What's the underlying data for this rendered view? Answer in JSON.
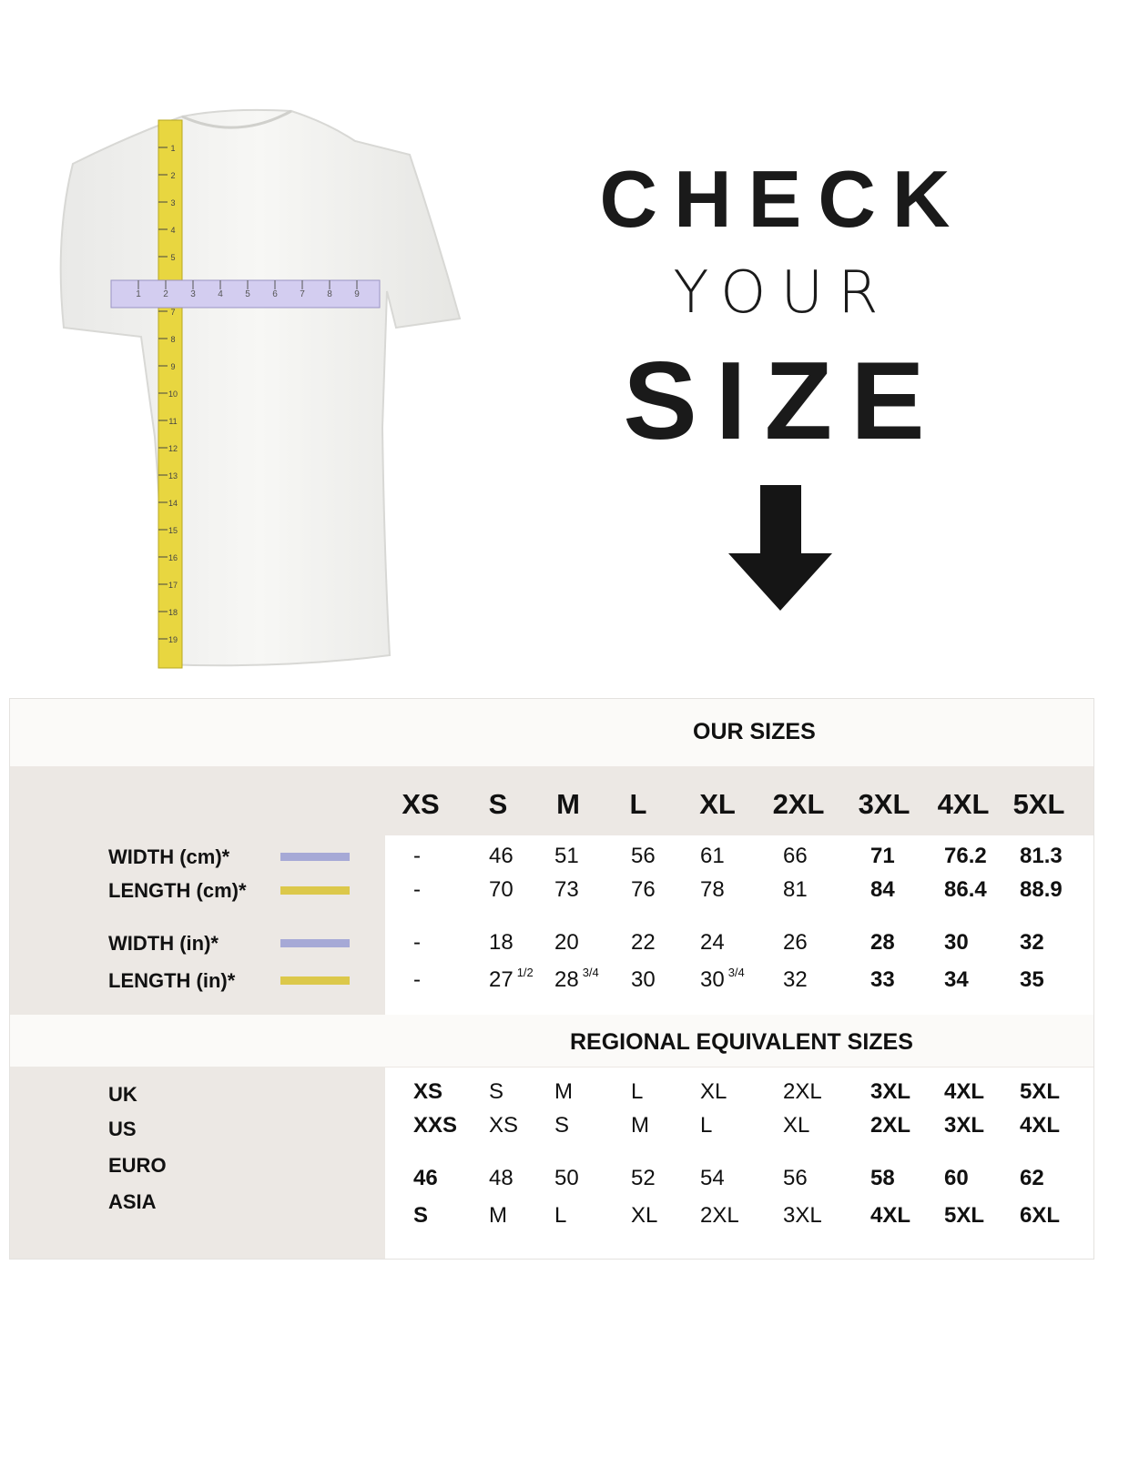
{
  "heading": {
    "line1": "CHECK",
    "line2": "YOUR",
    "line3": "SIZE"
  },
  "icons": {
    "arrow": "arrow-down-icon",
    "shirt": "t-shirt-with-tape-measures"
  },
  "tape": {
    "vertical_numbers": [
      "1",
      "2",
      "3",
      "4",
      "5",
      "6",
      "7",
      "8",
      "9",
      "10",
      "11",
      "12",
      "13",
      "14",
      "15",
      "16",
      "17",
      "18",
      "19"
    ],
    "horizontal_numbers": [
      "1",
      "2",
      "3",
      "4",
      "5",
      "6",
      "7",
      "8",
      "9"
    ],
    "vertical_color": "#e8d640",
    "horizontal_color": "#c9c3ea"
  },
  "our_sizes": {
    "title": "OUR SIZES",
    "sizes": [
      "XS",
      "S",
      "M",
      "L",
      "XL",
      "2XL",
      "3XL",
      "4XL",
      "5XL"
    ],
    "rows": [
      {
        "label": "WIDTH (cm)*",
        "swatch": "#a6a9d6",
        "values": [
          "-",
          "46",
          "51",
          "56",
          "61",
          "66",
          "71",
          "76.2",
          "81.3"
        ],
        "fractions": []
      },
      {
        "label": "LENGTH (cm)*",
        "swatch": "#dcc84a",
        "values": [
          "-",
          "70",
          "73",
          "76",
          "78",
          "81",
          "84",
          "86.4",
          "88.9"
        ],
        "fractions": []
      },
      {
        "label": "WIDTH (in)*",
        "swatch": "#a6a9d6",
        "values": [
          "-",
          "18",
          "20",
          "22",
          "24",
          "26",
          "28",
          "30",
          "32"
        ],
        "fractions": []
      },
      {
        "label": "LENGTH (in)*",
        "swatch": "#dcc84a",
        "values": [
          "-",
          "27",
          "28",
          "30",
          "30",
          "32",
          "33",
          "34",
          "35"
        ],
        "fractions": [
          "",
          "1/2",
          "3/4",
          "",
          "3/4",
          "",
          "",
          "",
          ""
        ]
      }
    ],
    "bold_columns": [
      6,
      7,
      8
    ]
  },
  "regional": {
    "title": "REGIONAL EQUIVALENT SIZES",
    "rows": [
      {
        "label": "UK",
        "values": [
          "XS",
          "S",
          "M",
          "L",
          "XL",
          "2XL",
          "3XL",
          "4XL",
          "5XL"
        ]
      },
      {
        "label": "US",
        "values": [
          "XXS",
          "XS",
          "S",
          "M",
          "L",
          "XL",
          "2XL",
          "3XL",
          "4XL"
        ]
      },
      {
        "label": "EURO",
        "values": [
          "46",
          "48",
          "50",
          "52",
          "54",
          "56",
          "58",
          "60",
          "62"
        ]
      },
      {
        "label": "ASIA",
        "values": [
          "S",
          "M",
          "L",
          "XL",
          "2XL",
          "3XL",
          "4XL",
          "5XL",
          "6XL"
        ]
      }
    ],
    "bold_columns": [
      0,
      6,
      7,
      8
    ]
  }
}
